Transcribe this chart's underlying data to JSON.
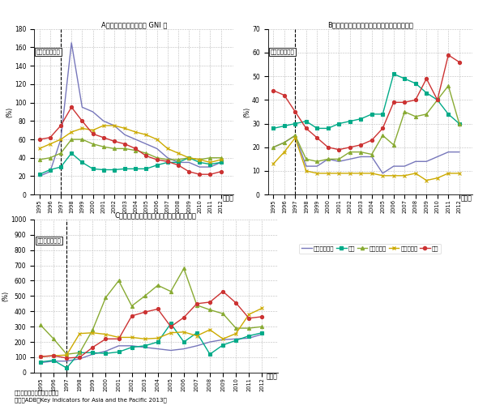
{
  "years": [
    1995,
    1996,
    1997,
    1998,
    1999,
    2000,
    2001,
    2002,
    2003,
    2004,
    2005,
    2006,
    2007,
    2008,
    2009,
    2010,
    2011,
    2012
  ],
  "title_A": "A。総対外債務残高の対 GNI 比",
  "title_B": "B。対外債務残高に占める短期債務残高の割合",
  "title_C": "C。短期債務残高に対する外貨準備高の割合",
  "ylabel_A": "(%)",
  "ylabel_B": "(%)",
  "ylabel_C": "(%)",
  "crisis_year": 1997,
  "crisis_label": "アジア通貨危機",
  "legend_labels": [
    "インドネシア",
    "韓国",
    "マレーシア",
    "フィリピン",
    "タイ"
  ],
  "colors": [
    "#7777bb",
    "#00aa88",
    "#88aa33",
    "#ccaa00",
    "#cc3333"
  ],
  "markers": [
    null,
    "s",
    "^",
    "x",
    "o"
  ],
  "A_indonesia": [
    20,
    25,
    60,
    165,
    95,
    90,
    80,
    75,
    65,
    60,
    55,
    50,
    40,
    35,
    35,
    30,
    30,
    35
  ],
  "A_korea": [
    22,
    27,
    30,
    45,
    35,
    28,
    27,
    27,
    28,
    28,
    28,
    32,
    35,
    35,
    40,
    35,
    33,
    35
  ],
  "A_malaysia": [
    38,
    40,
    45,
    60,
    60,
    55,
    52,
    50,
    50,
    48,
    45,
    40,
    38,
    38,
    40,
    38,
    40,
    40
  ],
  "A_philippines": [
    50,
    55,
    60,
    68,
    72,
    70,
    75,
    75,
    72,
    68,
    65,
    60,
    50,
    45,
    40,
    38,
    35,
    38
  ],
  "A_thailand": [
    60,
    62,
    75,
    95,
    80,
    66,
    62,
    58,
    55,
    50,
    42,
    38,
    36,
    32,
    25,
    22,
    22,
    25
  ],
  "B_indonesia": [
    20,
    22,
    25,
    12,
    12,
    15,
    14,
    15,
    16,
    16,
    9,
    12,
    12,
    14,
    14,
    16,
    18,
    18
  ],
  "B_korea": [
    28,
    29,
    30,
    31,
    28,
    28,
    30,
    31,
    32,
    34,
    34,
    51,
    49,
    47,
    43,
    40,
    34,
    30
  ],
  "B_malaysia": [
    20,
    22,
    25,
    15,
    14,
    15,
    15,
    18,
    18,
    17,
    25,
    21,
    35,
    33,
    34,
    40,
    46,
    30
  ],
  "B_philippines": [
    13,
    18,
    24,
    10,
    9,
    9,
    9,
    9,
    9,
    9,
    8,
    8,
    8,
    9,
    6,
    7,
    9,
    9
  ],
  "B_thailand": [
    44,
    42,
    35,
    28,
    24,
    20,
    19,
    20,
    21,
    23,
    28,
    39,
    39,
    40,
    49,
    40,
    59,
    56
  ],
  "C_indonesia": [
    65,
    75,
    75,
    90,
    120,
    140,
    175,
    175,
    165,
    155,
    145,
    155,
    175,
    200,
    215,
    220,
    225,
    250
  ],
  "C_korea": [
    70,
    80,
    30,
    130,
    130,
    125,
    135,
    165,
    175,
    200,
    320,
    200,
    260,
    120,
    180,
    210,
    240,
    260
  ],
  "C_malaysia": [
    310,
    220,
    120,
    130,
    280,
    490,
    600,
    435,
    500,
    570,
    530,
    680,
    440,
    410,
    385,
    290,
    290,
    300
  ],
  "C_philippines": [
    105,
    110,
    115,
    255,
    260,
    250,
    230,
    230,
    220,
    225,
    260,
    265,
    240,
    280,
    220,
    255,
    380,
    420
  ],
  "C_thailand": [
    105,
    110,
    95,
    100,
    165,
    220,
    220,
    370,
    395,
    415,
    300,
    360,
    450,
    460,
    530,
    455,
    355,
    365
  ],
  "note1": "備考：データは全て期末値。",
  "note2": "資料：ADB『Key Indicators for Asia and the Pacific 2013』",
  "xlabel": "（年）",
  "ylim_A": [
    0,
    180
  ],
  "ylim_B": [
    0,
    70
  ],
  "ylim_C": [
    0,
    1000
  ],
  "yticks_A": [
    0,
    20,
    40,
    60,
    80,
    100,
    120,
    140,
    160,
    180
  ],
  "yticks_B": [
    0,
    10,
    20,
    30,
    40,
    50,
    60,
    70
  ],
  "yticks_C": [
    0,
    100,
    200,
    300,
    400,
    500,
    600,
    700,
    800,
    900,
    1000
  ]
}
